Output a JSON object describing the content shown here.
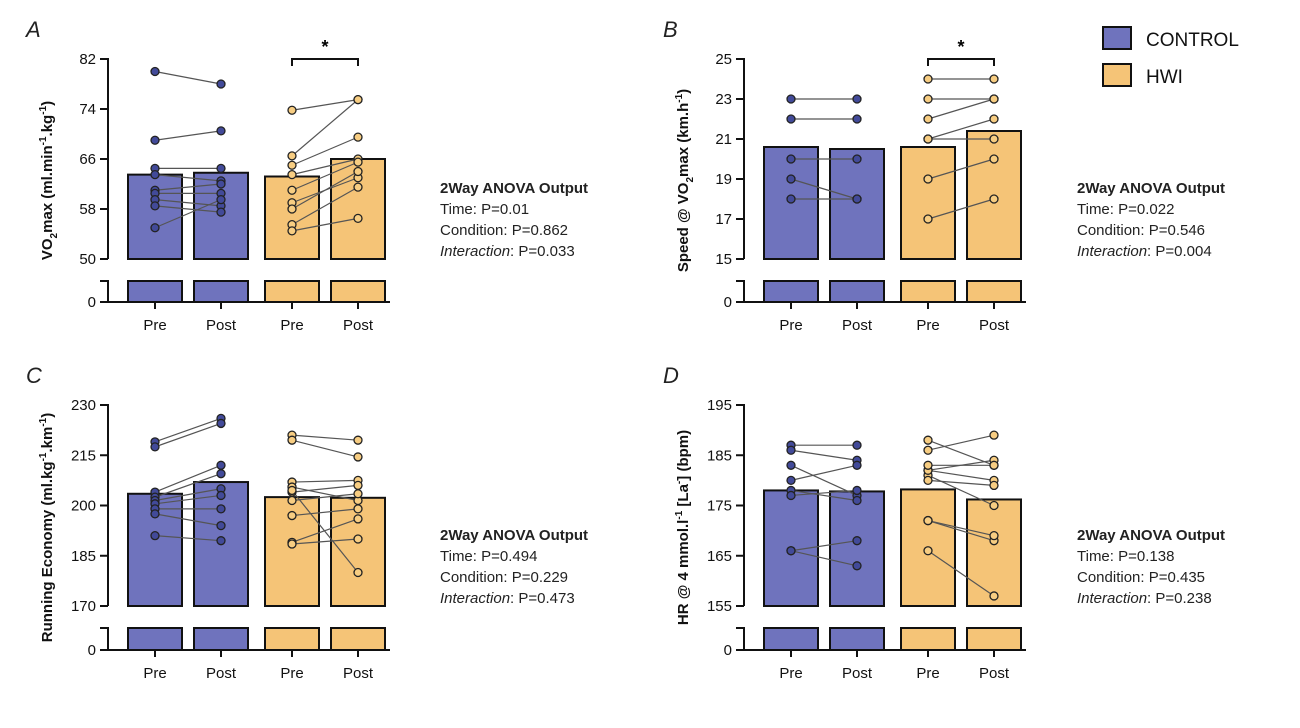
{
  "legend": {
    "items": [
      {
        "label": "CONTROL",
        "color": "#6f73bd"
      },
      {
        "label": "HWI",
        "color": "#f5c477"
      }
    ]
  },
  "colors": {
    "control_fill": "#6f73bd",
    "control_point": "#424a99",
    "hwi_fill": "#f5c477",
    "hwi_point": "#f7cd82",
    "axis": "#111111",
    "pair_line": "#555555"
  },
  "chart_data": [
    {
      "panel": "A",
      "type": "bar",
      "ylabel_parts": [
        [
          "VO",
          "n"
        ],
        [
          "2",
          "sub"
        ],
        [
          "max (ml.min",
          "n"
        ],
        [
          "-1",
          "sup"
        ],
        [
          ".kg",
          "n"
        ],
        [
          "-1",
          "sup"
        ],
        [
          ")",
          "n"
        ]
      ],
      "ylim": [
        50,
        82
      ],
      "yticks": [
        "50",
        "58",
        "66",
        "74",
        "82"
      ],
      "break_zero": "0",
      "categories": [
        "Pre",
        "Post",
        "Pre",
        "Post"
      ],
      "groups": [
        "CONTROL",
        "CONTROL",
        "HWI",
        "HWI"
      ],
      "bar_means": [
        63.5,
        63.8,
        63.2,
        66.0
      ],
      "control_pairs": [
        [
          80.0,
          78.0
        ],
        [
          69.0,
          70.5
        ],
        [
          64.5,
          64.5
        ],
        [
          63.5,
          62.5
        ],
        [
          61.0,
          62.0
        ],
        [
          60.5,
          60.5
        ],
        [
          59.5,
          58.5
        ],
        [
          58.5,
          57.5
        ],
        [
          55.0,
          59.5
        ]
      ],
      "hwi_pairs": [
        [
          73.8,
          75.5
        ],
        [
          66.5,
          75.5
        ],
        [
          65.0,
          69.5
        ],
        [
          63.5,
          66.0
        ],
        [
          61.0,
          65.5
        ],
        [
          59.0,
          63.0
        ],
        [
          58.0,
          64.0
        ],
        [
          55.5,
          61.5
        ],
        [
          54.5,
          56.5
        ]
      ],
      "significance": {
        "label": "*",
        "pair": "HWI"
      },
      "anova": {
        "title": "2Way ANOVA Output",
        "time": "Time: P=0.01",
        "condition": "Condition: P=0.862",
        "interaction_label": "Interaction",
        "interaction_value": ": P=0.033"
      }
    },
    {
      "panel": "B",
      "type": "bar",
      "ylabel_parts": [
        [
          "Speed @ VO",
          "n"
        ],
        [
          "2",
          "sub"
        ],
        [
          "max (km.h",
          "n"
        ],
        [
          "-1",
          "sup"
        ],
        [
          ")",
          "n"
        ]
      ],
      "ylim": [
        15,
        25
      ],
      "yticks": [
        "15",
        "17",
        "19",
        "21",
        "23",
        "25"
      ],
      "break_zero": "0",
      "categories": [
        "Pre",
        "Post",
        "Pre",
        "Post"
      ],
      "groups": [
        "CONTROL",
        "CONTROL",
        "HWI",
        "HWI"
      ],
      "bar_means": [
        20.6,
        20.5,
        20.6,
        21.4
      ],
      "control_pairs": [
        [
          23,
          23
        ],
        [
          22,
          22
        ],
        [
          20,
          20
        ],
        [
          19,
          18
        ],
        [
          18,
          18
        ]
      ],
      "hwi_pairs": [
        [
          24,
          24
        ],
        [
          23,
          23
        ],
        [
          22,
          23
        ],
        [
          21,
          22
        ],
        [
          21,
          21
        ],
        [
          19,
          20
        ],
        [
          17,
          18
        ]
      ],
      "significance": {
        "label": "*",
        "pair": "HWI"
      },
      "anova": {
        "title": "2Way ANOVA Output",
        "time": "Time: P=0.022",
        "condition": "Condition: P=0.546",
        "interaction_label": "Interaction",
        "interaction_value": ": P=0.004"
      }
    },
    {
      "panel": "C",
      "type": "bar",
      "ylabel_parts": [
        [
          "Running Economy (ml.kg",
          "n"
        ],
        [
          "-1",
          "sup"
        ],
        [
          ".km",
          "n"
        ],
        [
          "-1",
          "sup"
        ],
        [
          ")",
          "n"
        ]
      ],
      "ylim": [
        170,
        230
      ],
      "yticks": [
        "170",
        "185",
        "200",
        "215",
        "230"
      ],
      "break_zero": "0",
      "categories": [
        "Pre",
        "Post",
        "Pre",
        "Post"
      ],
      "groups": [
        "CONTROL",
        "CONTROL",
        "HWI",
        "HWI"
      ],
      "bar_means": [
        203.5,
        207.0,
        202.5,
        202.3
      ],
      "control_pairs": [
        [
          219,
          226
        ],
        [
          217.5,
          224.5
        ],
        [
          204,
          212
        ],
        [
          202.5,
          209.5
        ],
        [
          201.5,
          205
        ],
        [
          200.5,
          203
        ],
        [
          199,
          199
        ],
        [
          197.5,
          194
        ],
        [
          191,
          189.5
        ]
      ],
      "hwi_pairs": [
        [
          221,
          219.5
        ],
        [
          219.5,
          214.5
        ],
        [
          207,
          207.5
        ],
        [
          205.5,
          201.5
        ],
        [
          204,
          206
        ],
        [
          201.5,
          203.5
        ],
        [
          197,
          199
        ],
        [
          189,
          196
        ],
        [
          188.5,
          190
        ],
        [
          204.5,
          180
        ]
      ],
      "significance": null,
      "anova": {
        "title": "2Way ANOVA Output",
        "time": "Time: P=0.494",
        "condition": "Condition: P=0.229",
        "interaction_label": "Interaction",
        "interaction_value": ": P=0.473"
      }
    },
    {
      "panel": "D",
      "type": "bar",
      "ylabel_parts": [
        [
          "HR @ 4 mmol.l",
          "n"
        ],
        [
          "-1",
          "sup"
        ],
        [
          " [La",
          "n"
        ],
        [
          "-",
          "sup"
        ],
        [
          "] (bpm)",
          "n"
        ]
      ],
      "ylim": [
        155,
        195
      ],
      "yticks": [
        "155",
        "165",
        "175",
        "185",
        "195"
      ],
      "break_zero": "0",
      "categories": [
        "Pre",
        "Post",
        "Pre",
        "Post"
      ],
      "groups": [
        "CONTROL",
        "CONTROL",
        "HWI",
        "HWI"
      ],
      "bar_means": [
        178.0,
        177.8,
        178.2,
        176.2
      ],
      "control_pairs": [
        [
          187,
          187
        ],
        [
          186,
          184
        ],
        [
          183,
          177
        ],
        [
          180,
          183
        ],
        [
          178,
          176
        ],
        [
          177,
          178
        ],
        [
          166,
          168
        ],
        [
          166,
          163
        ]
      ],
      "hwi_pairs": [
        [
          188,
          183
        ],
        [
          186,
          189
        ],
        [
          182,
          180
        ],
        [
          181,
          175
        ],
        [
          182,
          184
        ],
        [
          183,
          183
        ],
        [
          180,
          179
        ],
        [
          172,
          168
        ],
        [
          172,
          169
        ],
        [
          166,
          157
        ]
      ],
      "significance": null,
      "anova": {
        "title": "2Way ANOVA Output",
        "time": "Time: P=0.138",
        "condition": "Condition: P=0.435",
        "interaction_label": "Interaction",
        "interaction_value": ": P=0.238"
      }
    }
  ]
}
